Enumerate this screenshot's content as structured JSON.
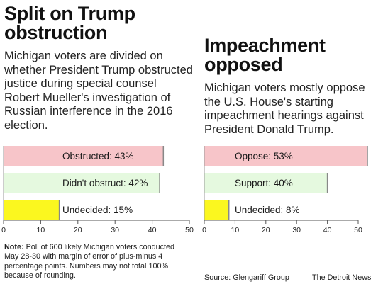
{
  "left": {
    "title": "Split on Trump obstruction",
    "dek": "Michigan voters are divided on whether President Trump obstructed justice during special counsel Robert Mueller's investigation of Russian interference in the 2016 election.",
    "note_label": "Note:",
    "note_text": "Poll of 600 likely Michigan voters conducted May 28-30 with margin of error of plus-minus 4 percentage points. Numbers may not total 100% because of rounding."
  },
  "right": {
    "title": "Impeachment opposed",
    "dek": "Michigan voters mostly oppose the U.S. House's starting impeachment hearings against President Donald Trump."
  },
  "footer": {
    "source": "Source: Glengariff Group",
    "credit": "The Detroit News"
  },
  "colors": {
    "red_fill": "#f7c5c9",
    "green_fill": "#e5f9df",
    "yellow_fill": "#fbf71f",
    "bar_edge": "#888888"
  },
  "chart_data": [
    {
      "type": "bar",
      "orientation": "horizontal",
      "title": "Split on Trump obstruction",
      "categories": [
        "Obstructed",
        "Didn't obstruct",
        "Undecided"
      ],
      "values": [
        43,
        42,
        15
      ],
      "labels": [
        "Obstructed: 43%",
        "Didn't obstruct: 42%",
        "Undecided: 15%"
      ],
      "colors": [
        "#f7c5c9",
        "#e5f9df",
        "#fbf71f"
      ],
      "xlim": [
        0,
        50
      ],
      "xticks": [
        0,
        10,
        20,
        30,
        40,
        50
      ],
      "grid": false
    },
    {
      "type": "bar",
      "orientation": "horizontal",
      "title": "Impeachment opposed",
      "categories": [
        "Oppose",
        "Support",
        "Undecided"
      ],
      "values": [
        53,
        40,
        8
      ],
      "labels": [
        "Oppose: 53%",
        "Support: 40%",
        "Undecided: 8%"
      ],
      "colors": [
        "#f7c5c9",
        "#e5f9df",
        "#fbf71f"
      ],
      "xlim": [
        0,
        50
      ],
      "xticks": [
        0,
        10,
        20,
        30,
        40,
        50
      ],
      "grid": false
    }
  ]
}
